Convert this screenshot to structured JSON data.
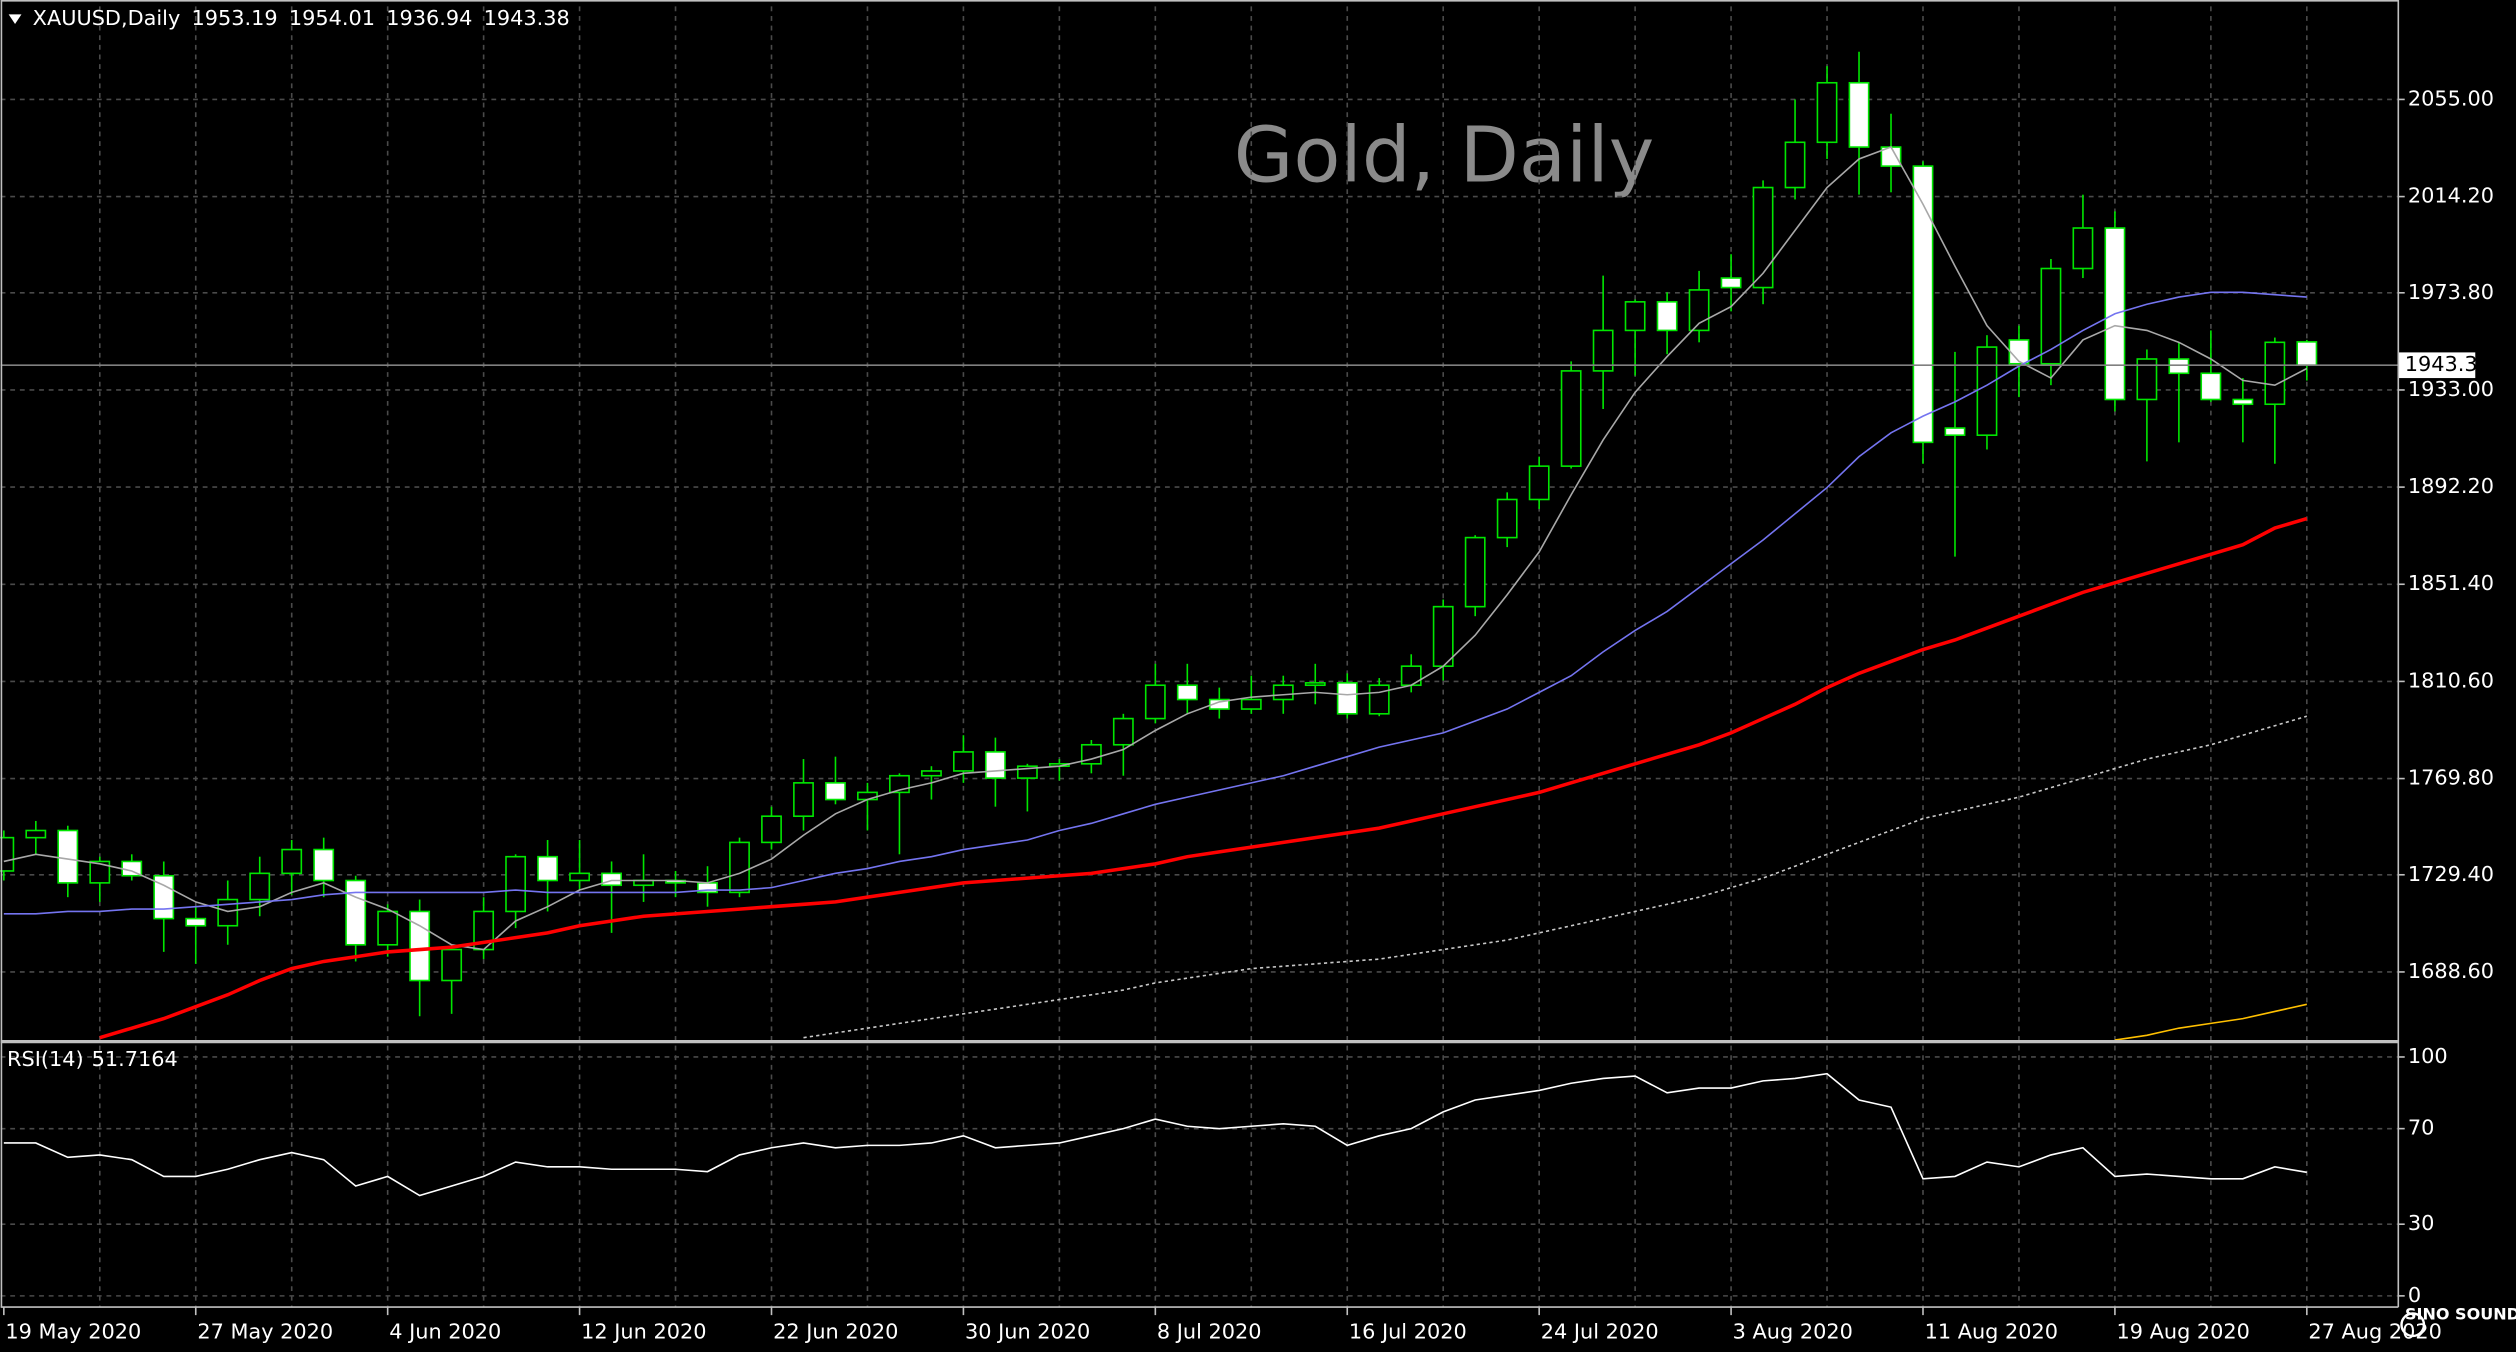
{
  "chart_data": [
    {
      "type": "candlestick",
      "symbol": "XAUUSD,Daily",
      "title": "Gold, Daily",
      "categories": [
        "19 May 2020",
        null,
        null,
        null,
        null,
        null,
        "27 May 2020",
        null,
        null,
        null,
        null,
        null,
        "4 Jun 2020",
        null,
        null,
        null,
        null,
        null,
        "12 Jun 2020",
        null,
        null,
        null,
        null,
        null,
        "22 Jun 2020",
        null,
        null,
        null,
        null,
        null,
        "30 Jun 2020",
        null,
        null,
        null,
        null,
        null,
        "8 Jul 2020",
        null,
        null,
        null,
        null,
        null,
        "16 Jul 2020",
        null,
        null,
        null,
        null,
        null,
        "24 Jul 2020",
        null,
        null,
        null,
        null,
        null,
        "3 Aug 2020",
        null,
        null,
        null,
        null,
        null,
        "11 Aug 2020",
        null,
        null,
        null,
        null,
        null,
        "19 Aug 2020",
        null,
        null,
        null,
        null,
        null,
        "27 Aug 2020"
      ],
      "open": [
        1731,
        1745,
        1748,
        1726,
        1735,
        1729,
        1711,
        1708,
        1719,
        1730,
        1740,
        1727,
        1700,
        1714,
        1685,
        1698,
        1714,
        1737,
        1727,
        1730,
        1725,
        1727,
        1726,
        1722,
        1743,
        1754,
        1768,
        1761,
        1764,
        1771,
        1773,
        1781,
        1770,
        1775,
        1776,
        1784,
        1795,
        1809,
        1803,
        1799,
        1803,
        1809,
        1810,
        1797,
        1809,
        1817,
        1842,
        1871,
        1887,
        1901,
        1941,
        1958,
        1970,
        1958,
        1980,
        1976,
        2018,
        2037,
        2062,
        2035,
        2027,
        1917,
        1914,
        1954,
        1944,
        1984,
        2001,
        1929,
        1946,
        1940,
        1929,
        1927,
        1953.19
      ],
      "high": [
        1748,
        1752,
        1750,
        1737,
        1738,
        1735,
        1716,
        1727,
        1737,
        1744,
        1745,
        1729,
        1717,
        1719,
        1700,
        1720,
        1738,
        1744,
        1744,
        1735,
        1738,
        1731,
        1733,
        1745,
        1758,
        1778,
        1779,
        1768,
        1772,
        1775,
        1788,
        1787,
        1776,
        1778,
        1786,
        1797,
        1818,
        1818,
        1808,
        1813,
        1813,
        1818,
        1814,
        1812,
        1822,
        1845,
        1872,
        1890,
        1905,
        1945,
        1981,
        1971,
        1974,
        1983,
        1990,
        2021,
        2055,
        2069,
        2075,
        2049,
        2029,
        1949,
        1956,
        1960,
        1988,
        2015,
        2008,
        1950,
        1953,
        1958,
        1938,
        1955,
        1954.01
      ],
      "low": [
        1727,
        1738,
        1720,
        1718,
        1727,
        1697,
        1692,
        1700,
        1712,
        1721,
        1720,
        1693,
        1695,
        1670,
        1671,
        1694,
        1707,
        1714,
        1723,
        1705,
        1718,
        1720,
        1716,
        1720,
        1740,
        1748,
        1759,
        1748,
        1738,
        1761,
        1768,
        1758,
        1756,
        1769,
        1772,
        1771,
        1793,
        1797,
        1795,
        1797,
        1797,
        1801,
        1795,
        1796,
        1806,
        1811,
        1838,
        1867,
        1883,
        1900,
        1925,
        1939,
        1948,
        1953,
        1966,
        1969,
        2013,
        2030,
        2015,
        2016,
        1902,
        1863,
        1908,
        1930,
        1935,
        1980,
        1924,
        1903,
        1911,
        1928,
        1911,
        1902,
        1936.94
      ],
      "close": [
        1745,
        1748,
        1726,
        1735,
        1729,
        1711,
        1708,
        1719,
        1730,
        1740,
        1727,
        1700,
        1714,
        1685,
        1698,
        1714,
        1737,
        1727,
        1730,
        1725,
        1727,
        1726,
        1722,
        1743,
        1754,
        1768,
        1761,
        1764,
        1771,
        1773,
        1781,
        1770,
        1775,
        1776,
        1784,
        1795,
        1809,
        1803,
        1799,
        1803,
        1809,
        1810,
        1797,
        1809,
        1817,
        1842,
        1871,
        1887,
        1901,
        1941,
        1958,
        1970,
        1958,
        1975,
        1976,
        2018,
        2037,
        2062,
        2035,
        2027,
        1911,
        1914,
        1951,
        1944,
        1984,
        2001,
        1929,
        1946,
        1940,
        1929,
        1927,
        1953,
        1943.38
      ],
      "up_color": "#000000",
      "down_color": "#ffffff",
      "wick_color": "#00e600",
      "series": [
        {
          "color": "#a8a8a8",
          "style": "thin",
          "values": [
            1735,
            1738,
            1736,
            1734,
            1731,
            1725,
            1718,
            1714,
            1716,
            1722,
            1726,
            1720,
            1715,
            1708,
            1700,
            1698,
            1710,
            1716,
            1723,
            1727,
            1727,
            1727,
            1726,
            1730,
            1736,
            1746,
            1755,
            1761,
            1765,
            1768,
            1772,
            1773,
            1774,
            1775,
            1778,
            1782,
            1790,
            1797,
            1802,
            1804,
            1805,
            1806,
            1805,
            1806,
            1809,
            1817,
            1830,
            1847,
            1865,
            1889,
            1912,
            1932,
            1947,
            1961,
            1968,
            1982,
            2000,
            2018,
            2030,
            2035,
            2011,
            1985,
            1960,
            1945,
            1938,
            1954,
            1960,
            1958,
            1953,
            1946,
            1937,
            1935,
            1942
          ]
        },
        {
          "color": "#7474f0",
          "style": "thin",
          "values": [
            1713,
            1713,
            1714,
            1714,
            1715,
            1715,
            1716,
            1717,
            1718,
            1719,
            1721,
            1722,
            1722,
            1722,
            1722,
            1722,
            1723,
            1722,
            1722,
            1722,
            1722,
            1722,
            1723,
            1723,
            1724,
            1727,
            1730,
            1732,
            1735,
            1737,
            1740,
            1742,
            1744,
            1748,
            1751,
            1755,
            1759,
            1762,
            1765,
            1768,
            1771,
            1775,
            1779,
            1783,
            1786,
            1789,
            1794,
            1799,
            1806,
            1813,
            1823,
            1832,
            1840,
            1850,
            1860,
            1870,
            1881,
            1892,
            1905,
            1915,
            1922,
            1928,
            1935,
            1943,
            1950,
            1958,
            1965,
            1969,
            1972,
            1974,
            1974,
            1973,
            1972
          ]
        },
        {
          "color": "#ff0000",
          "style": "thick",
          "values": [
            null,
            null,
            null,
            1661,
            1665,
            1669,
            1674,
            1679,
            1685,
            1690,
            1693,
            1695,
            1697,
            1698,
            1699,
            1701,
            1703,
            1705,
            1708,
            1710,
            1712,
            1713,
            1714,
            1715,
            1716,
            1717,
            1718,
            1720,
            1722,
            1724,
            1726,
            1727,
            1728,
            1729,
            1730,
            1732,
            1734,
            1737,
            1739,
            1741,
            1743,
            1745,
            1747,
            1749,
            1752,
            1755,
            1758,
            1761,
            1764,
            1768,
            1772,
            1776,
            1780,
            1784,
            1789,
            1795,
            1801,
            1808,
            1814,
            1819,
            1824,
            1828,
            1833,
            1838,
            1843,
            1848,
            1852,
            1856,
            1860,
            1864,
            1868,
            1875,
            1879
          ]
        },
        {
          "color": "#c8c8c8",
          "style": "dotted",
          "values": [
            null,
            null,
            null,
            null,
            null,
            null,
            null,
            null,
            null,
            null,
            null,
            null,
            null,
            null,
            null,
            null,
            null,
            null,
            null,
            null,
            null,
            null,
            null,
            null,
            null,
            1661,
            1663,
            1665,
            1667,
            1669,
            1671,
            1673,
            1675,
            1677,
            1679,
            1681,
            1684,
            1686,
            1688,
            1690,
            1691,
            1692,
            1693,
            1694,
            1696,
            1698,
            1700,
            1702,
            1705,
            1708,
            1711,
            1714,
            1717,
            1720,
            1724,
            1728,
            1733,
            1738,
            1743,
            1748,
            1753,
            1756,
            1759,
            1762,
            1766,
            1770,
            1774,
            1778,
            1781,
            1784,
            1788,
            1792,
            1796
          ]
        },
        {
          "color": "#ffc000",
          "style": "thin",
          "values": [
            null,
            null,
            null,
            null,
            null,
            null,
            null,
            null,
            null,
            null,
            null,
            null,
            null,
            null,
            null,
            null,
            null,
            null,
            null,
            null,
            null,
            null,
            null,
            null,
            null,
            null,
            null,
            null,
            null,
            null,
            null,
            null,
            null,
            null,
            null,
            null,
            null,
            null,
            null,
            null,
            null,
            null,
            null,
            null,
            null,
            null,
            null,
            null,
            null,
            null,
            null,
            null,
            null,
            null,
            null,
            null,
            null,
            null,
            null,
            null,
            null,
            null,
            null,
            null,
            null,
            null,
            1660,
            1662,
            1665,
            1667,
            1669,
            1672,
            1675
          ]
        }
      ],
      "ylim": [
        1660.33,
        2094.06
      ],
      "yticks": [
        {
          "value": 2055,
          "label": "2055.00"
        },
        {
          "value": 2014.2,
          "label": "2014.20"
        },
        {
          "value": 1973.8,
          "label": "1973.80"
        },
        {
          "value": 1933,
          "label": "1933.00"
        },
        {
          "value": 1892.2,
          "label": "1892.20"
        },
        {
          "value": 1851.4,
          "label": "1851.40"
        },
        {
          "value": 1810.6,
          "label": "1810.60"
        },
        {
          "value": 1769.8,
          "label": "1769.80"
        },
        {
          "value": 1729.4,
          "label": "1729.40"
        },
        {
          "value": 1688.6,
          "label": "1688.60"
        }
      ],
      "grid": true
    },
    {
      "type": "line",
      "label": "RSI(14)",
      "series": [
        {
          "color": "#ffffff",
          "values": [
            64,
            64,
            58,
            59,
            57,
            50,
            50,
            53,
            57,
            60,
            57,
            46,
            50,
            42,
            46,
            50,
            56,
            54,
            54,
            53,
            53,
            53,
            52,
            59,
            62,
            64,
            62,
            63,
            63,
            64,
            67,
            62,
            63,
            64,
            67,
            70,
            74,
            71,
            70,
            71,
            72,
            71,
            63,
            67,
            70,
            77,
            82,
            84,
            86,
            89,
            91,
            92,
            85,
            87,
            87,
            90,
            91,
            93,
            82,
            79,
            49,
            50,
            56,
            54,
            59,
            62,
            50,
            51,
            50,
            49,
            49,
            54,
            51.7164
          ]
        }
      ],
      "ylim": [
        -4.7,
        105.4
      ],
      "yticks": [
        0,
        30,
        70,
        100
      ],
      "grid": true
    }
  ],
  "watermark": "SINO SOUND"
}
